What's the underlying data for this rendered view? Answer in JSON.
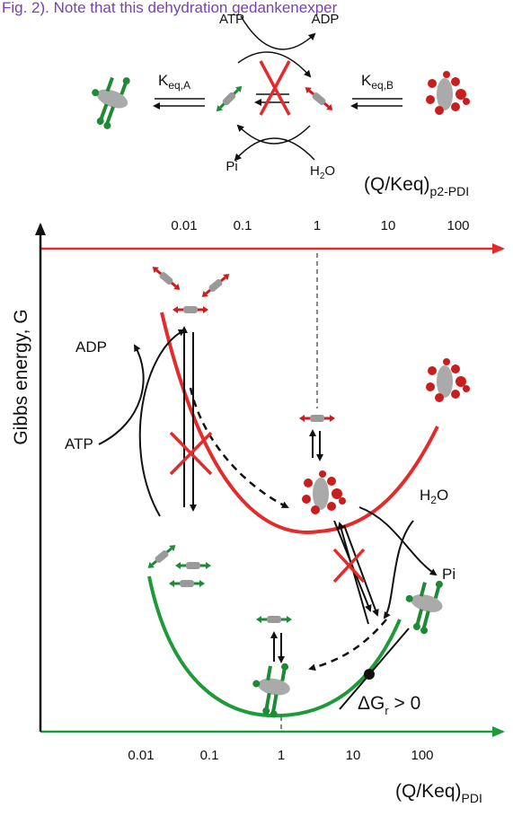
{
  "caption": "Fig. 2). Note that this dehydration gedankenexper",
  "scheme": {
    "atp": "ATP",
    "adp": "ADP",
    "keq_a": {
      "base": "K",
      "sub": "eq,A"
    },
    "keq_b": {
      "base": "K",
      "sub": "eq,B"
    },
    "pi": "Pi",
    "h2o": {
      "base": "H",
      "sub": "2",
      "rest": "O"
    }
  },
  "top_axis": {
    "label": {
      "base": "(Q/Keq)",
      "sub": "p2-PDI"
    },
    "ticks": [
      "0.01",
      "0.1",
      "1",
      "10",
      "100"
    ]
  },
  "y_axis_label": "Gibbs energy, G",
  "left_cycle": {
    "adp": "ADP",
    "atp": "ATP"
  },
  "right_cycle": {
    "h2o": {
      "base": "H",
      "sub": "2",
      "rest": "O"
    },
    "pi": "Pi"
  },
  "delta_g": {
    "base": "ΔG",
    "sub": "r",
    "rest": " > 0"
  },
  "bottom_axis": {
    "label": {
      "base": "(Q/Keq)",
      "sub": "PDI"
    },
    "ticks": [
      "0.01",
      "0.1",
      "1",
      "10",
      "100"
    ]
  }
}
